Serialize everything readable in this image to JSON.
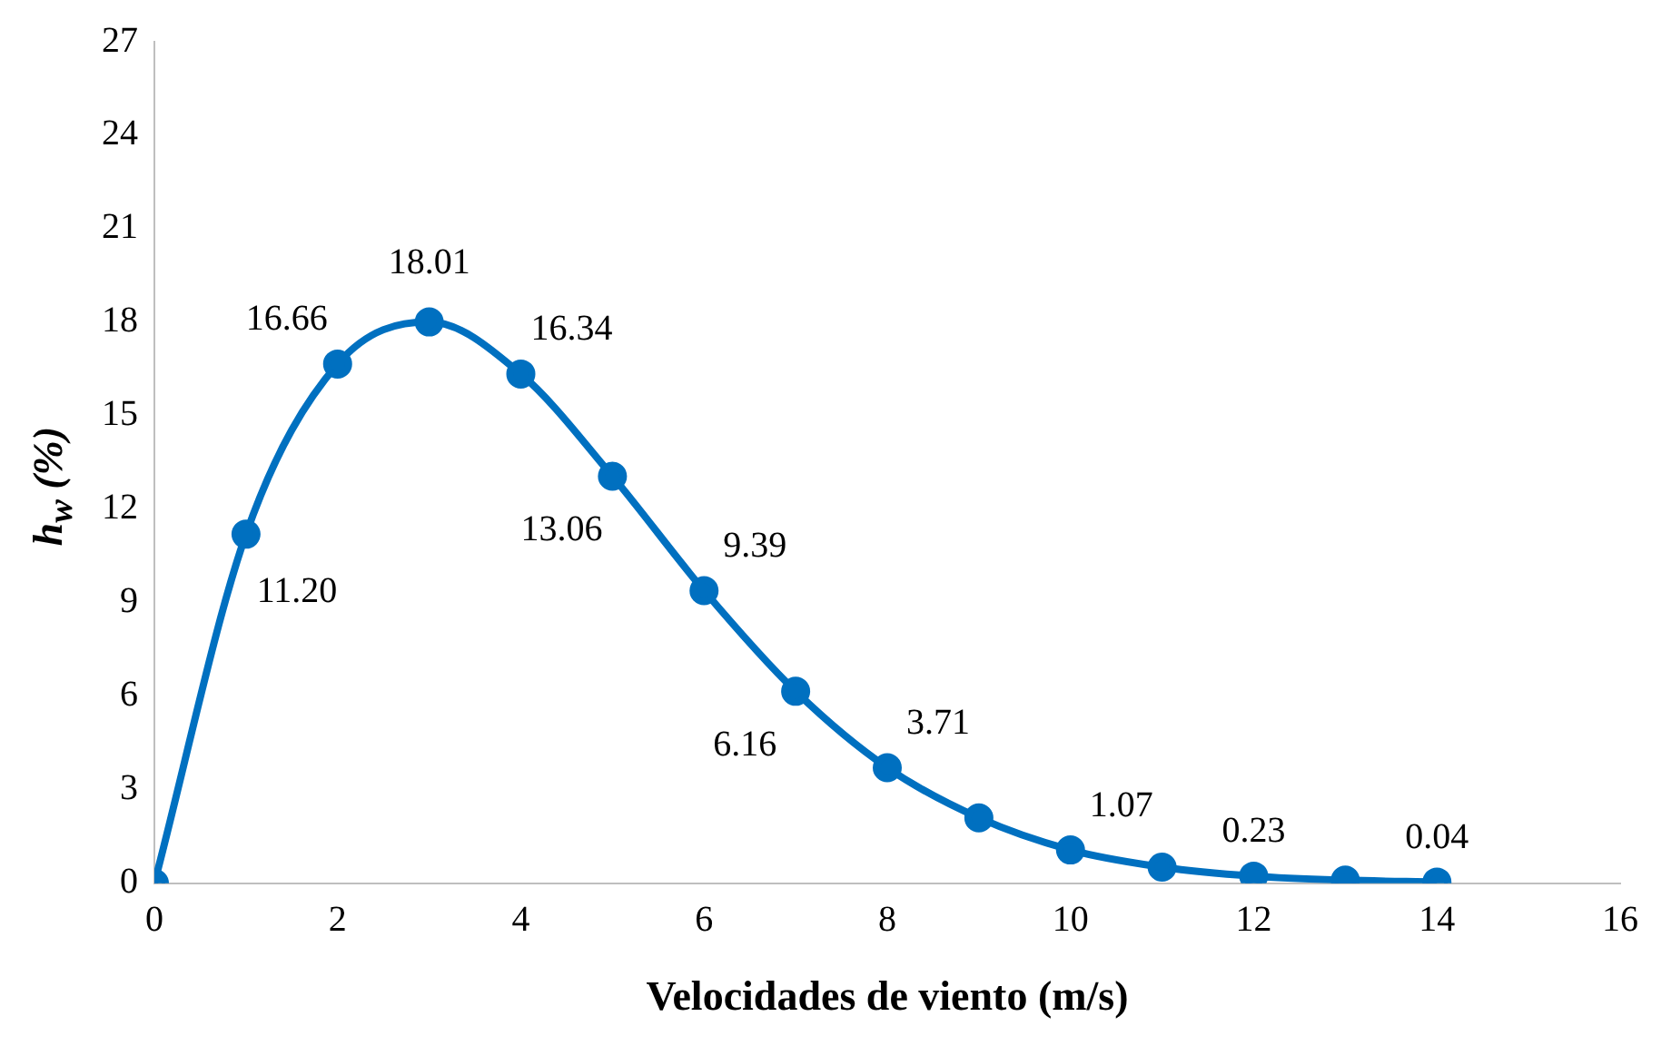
{
  "chart_data": {
    "type": "line",
    "xlabel": "Velocidades de viento (m/s)",
    "ylabel": "h$_{w}$ (%)",
    "x": [
      0,
      1,
      2,
      3,
      4,
      5,
      6,
      7,
      8,
      9,
      10,
      11,
      12,
      13,
      14
    ],
    "series": [
      {
        "color": "#0070c0",
        "values": [
          0,
          11.2,
          16.66,
          18.01,
          16.34,
          13.06,
          9.39,
          6.16,
          3.71,
          2.1,
          1.07,
          0.52,
          0.23,
          0.1,
          0.04
        ],
        "value_labels": [
          null,
          "11.20",
          "16.66",
          "18.01",
          "16.34",
          "13.06",
          "9.39",
          "6.16",
          "3.71",
          null,
          "1.07",
          null,
          "0.23",
          null,
          "0.04"
        ]
      }
    ],
    "xlim": [
      0,
      16
    ],
    "xticks": [
      0,
      2,
      4,
      6,
      8,
      10,
      12,
      14,
      16
    ],
    "ylim": [
      0,
      27
    ],
    "yticks": [
      0,
      3,
      6,
      9,
      12,
      15,
      18,
      21,
      24,
      27
    ],
    "grid": false,
    "legend": false,
    "marker": "circle",
    "line_style": "solid"
  }
}
